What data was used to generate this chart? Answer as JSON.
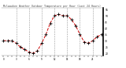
{
  "title": "Milwaukee Weather Outdoor Temperature per Hour (Last 24 Hours)",
  "hours": [
    0,
    1,
    2,
    3,
    4,
    5,
    6,
    7,
    8,
    9,
    10,
    11,
    12,
    13,
    14,
    15,
    16,
    17,
    18,
    19,
    20,
    21,
    22,
    23
  ],
  "temps": [
    30,
    30,
    30,
    28,
    25,
    23,
    21,
    20,
    22,
    28,
    35,
    44,
    50,
    51,
    50,
    50,
    47,
    42,
    35,
    29,
    28,
    30,
    33,
    35
  ],
  "line_color": "#cc0000",
  "bg_color": "#ffffff",
  "grid_color": "#999999",
  "tick_color": "#000000",
  "title_color": "#444444",
  "ylim": [
    18,
    56
  ],
  "xlim": [
    -0.5,
    23.5
  ],
  "yticks": [
    20,
    25,
    30,
    35,
    40,
    45,
    50,
    55
  ],
  "marker": "+",
  "marker_size": 2.5,
  "line_width": 0.7,
  "dashed_xpositions": [
    3,
    6,
    9,
    12,
    15,
    18,
    21
  ]
}
